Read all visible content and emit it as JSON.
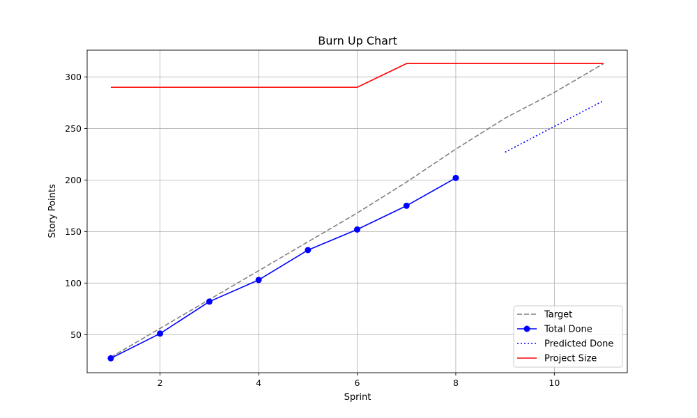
{
  "chart_data": {
    "type": "line",
    "title": "Burn Up Chart",
    "xlabel": "Sprint",
    "ylabel": "Story Points",
    "xlim": [
      0.52,
      11.48
    ],
    "ylim": [
      13,
      326
    ],
    "x_ticks": [
      2,
      4,
      6,
      8,
      10
    ],
    "y_ticks": [
      50,
      100,
      150,
      200,
      250,
      300
    ],
    "grid": true,
    "legend_position": "lower-right",
    "series": [
      {
        "name": "Target",
        "color": "#808080",
        "style": "dashed",
        "marker": "none",
        "x": [
          1,
          2,
          3,
          4,
          5,
          6,
          7,
          8,
          9,
          10,
          11
        ],
        "y": [
          28,
          56,
          84,
          112,
          140,
          168,
          198,
          230,
          260,
          285,
          313
        ]
      },
      {
        "name": "Total Done",
        "color": "#0000ff",
        "style": "solid",
        "marker": "circle",
        "x": [
          1,
          2,
          3,
          4,
          5,
          6,
          7,
          8
        ],
        "y": [
          27,
          51,
          82,
          103,
          132,
          152,
          175,
          202
        ]
      },
      {
        "name": "Predicted Done",
        "color": "#0000ff",
        "style": "dotted",
        "marker": "none",
        "x": [
          9,
          10,
          11
        ],
        "y": [
          227,
          252,
          277
        ]
      },
      {
        "name": "Project Size",
        "color": "#ff0000",
        "style": "solid",
        "marker": "none",
        "x": [
          1,
          6,
          7,
          11
        ],
        "y": [
          290,
          290,
          313,
          313
        ]
      }
    ]
  }
}
